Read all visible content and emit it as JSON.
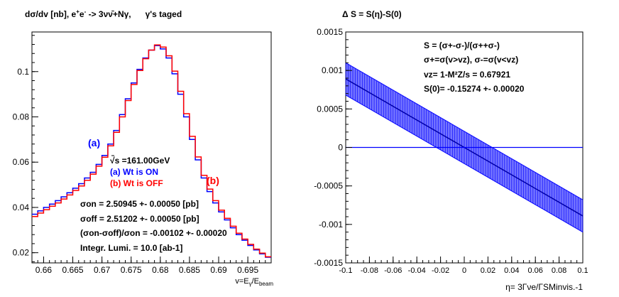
{
  "chart_data": [
    {
      "type": "line",
      "title": "dσ/dv [nb],   e+e- -> 3νν̄+Nγ,      γ's taged",
      "title_parts": {
        "main": "dσ/dv [nb],   e",
        "sup1": "+",
        "mid1": "e",
        "sup2": "-",
        "mid2": " -> 3νν̄+Nγ,",
        "tail": "γ's taged"
      },
      "xlabel": "v=Eγ/Ebeam",
      "xlabel_parts": {
        "main": "v=E",
        "sub1": "γ",
        "mid": "/E",
        "sub2": "beam"
      },
      "ylabel": "",
      "xlim": [
        0.658,
        0.699
      ],
      "ylim": [
        0.0155,
        0.1175
      ],
      "xticks": [
        0.66,
        0.665,
        0.67,
        0.675,
        0.68,
        0.685,
        0.69,
        0.695
      ],
      "xtick_labels": [
        "0.66",
        "0.665",
        "0.67",
        "0.675",
        "0.68",
        "0.685",
        "0.69",
        "0.695"
      ],
      "yticks": [
        0.02,
        0.04,
        0.06,
        0.08,
        0.1
      ],
      "ytick_labels": [
        "0.02",
        "0.04",
        "0.06",
        "0.08",
        "0.1"
      ],
      "bin_edges": [
        0.658,
        0.659,
        0.66,
        0.661,
        0.662,
        0.663,
        0.664,
        0.665,
        0.666,
        0.667,
        0.668,
        0.669,
        0.67,
        0.671,
        0.672,
        0.673,
        0.674,
        0.675,
        0.676,
        0.677,
        0.678,
        0.679,
        0.68,
        0.681,
        0.682,
        0.683,
        0.684,
        0.685,
        0.686,
        0.687,
        0.688,
        0.689,
        0.69,
        0.691,
        0.692,
        0.693,
        0.694,
        0.695,
        0.696,
        0.697,
        0.698,
        0.699
      ],
      "series": [
        {
          "name": "Wt is ON",
          "color": "#0000ff",
          "values": [
            0.037,
            0.0385,
            0.04,
            0.0415,
            0.043,
            0.0447,
            0.0465,
            0.0485,
            0.0505,
            0.053,
            0.0555,
            0.059,
            0.063,
            0.068,
            0.074,
            0.081,
            0.088,
            0.095,
            0.101,
            0.106,
            0.1095,
            0.1115,
            0.11,
            0.106,
            0.099,
            0.09,
            0.08,
            0.07,
            0.061,
            0.053,
            0.047,
            0.042,
            0.038,
            0.0345,
            0.031,
            0.028,
            0.0255,
            0.0232,
            0.0212,
            0.0195,
            0.018
          ]
        },
        {
          "name": "Wt is OFF",
          "color": "#ff0000",
          "values": [
            0.036,
            0.0375,
            0.039,
            0.0405,
            0.042,
            0.0437,
            0.0455,
            0.0475,
            0.0495,
            0.052,
            0.0547,
            0.0582,
            0.0622,
            0.0672,
            0.0732,
            0.08,
            0.0872,
            0.0943,
            0.1005,
            0.1057,
            0.1095,
            0.1118,
            0.1108,
            0.107,
            0.1002,
            0.0913,
            0.0814,
            0.0714,
            0.0623,
            0.0542,
            0.0481,
            0.043,
            0.0388,
            0.0352,
            0.0317,
            0.0286,
            0.026,
            0.0237,
            0.0216,
            0.0198,
            0.0182
          ]
        }
      ],
      "annotations": {
        "label_a": "(a)",
        "label_b": "(b)",
        "sqrt_s": "√s =161.00GeV",
        "legend_on": "(a)  Wt is ON",
        "legend_off": "(b)  Wt is OFF",
        "sigma_on": "σon = 2.50945 +- 0.00050 [pb]",
        "sigma_off": "σoff = 2.51202 +- 0.00050 [pb]",
        "sigma_diff": "(σon-σoff)/σon = -0.00102 +- 0.00020",
        "lumi": "Integr. Lumi. = 10.0 [ab-1]"
      }
    },
    {
      "type": "line",
      "title": "Δ S = S(η)-S(0)",
      "xlabel": "η= 3Γνe/ΓSMinvis.-1",
      "ylabel": "",
      "xlim": [
        -0.1,
        0.1
      ],
      "ylim": [
        -0.0015,
        0.0015
      ],
      "xticks": [
        -0.1,
        -0.08,
        -0.06,
        -0.04,
        -0.02,
        0,
        0.02,
        0.04,
        0.06,
        0.08,
        0.1
      ],
      "xtick_labels": [
        "-0.1",
        "-0.08",
        "-0.06",
        "-0.04",
        "-0.02",
        "0",
        "0.02",
        "0.04",
        "0.06",
        "0.08",
        "0.1"
      ],
      "yticks": [
        -0.0015,
        -0.001,
        -0.0005,
        0,
        0.0005,
        0.001,
        0.0015
      ],
      "ytick_labels": [
        "-0.0015",
        "-0.001",
        "-0.0005",
        "0",
        "0.0005",
        "0.001",
        "0.0015"
      ],
      "band": {
        "slope": -0.0089,
        "half_width": 0.00021,
        "color": "#0000ff"
      },
      "zero_line": 0,
      "annotations": {
        "line1": "S = (σ+-σ-)/(σ++σ-)",
        "line2": "σ+=σ(v>vz),   σ-=σ(v<vz)",
        "line3": "vz= 1-M²Z/s = 0.67921",
        "line4": "S(0)= -0.15274 +- 0.00020"
      }
    }
  ]
}
